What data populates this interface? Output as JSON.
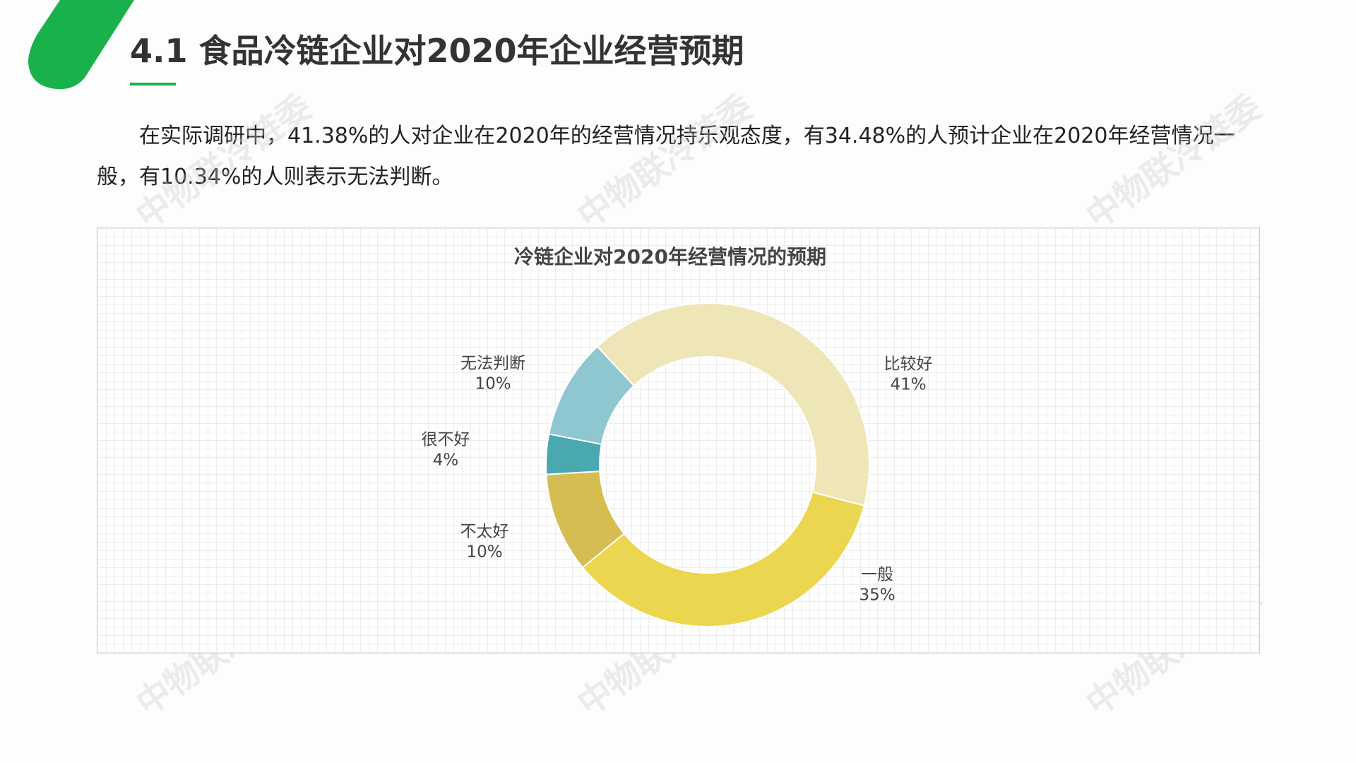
{
  "header": {
    "title": "4.1 食品冷链企业对2020年企业经营预期"
  },
  "paragraph": "在实际调研中，41.38%的人对企业在2020年的经营情况持乐观态度，有34.48%的人预计企业在2020年经营情况一般，有10.34%的人则表示无法判断。",
  "watermark": "中物联冷链委",
  "chart_data": {
    "type": "donut",
    "title": "冷链企业对2020年经营情况的预期",
    "categories": [
      "比较好",
      "一般",
      "不太好",
      "很不好",
      "无法判断"
    ],
    "values": [
      41,
      35,
      10,
      4,
      10
    ],
    "value_labels": [
      "41%",
      "35%",
      "10%",
      "4%",
      "10%"
    ],
    "colors": [
      "#efe6b8",
      "#ecd64f",
      "#d5bd52",
      "#4aa8b0",
      "#8fc7d0"
    ]
  }
}
